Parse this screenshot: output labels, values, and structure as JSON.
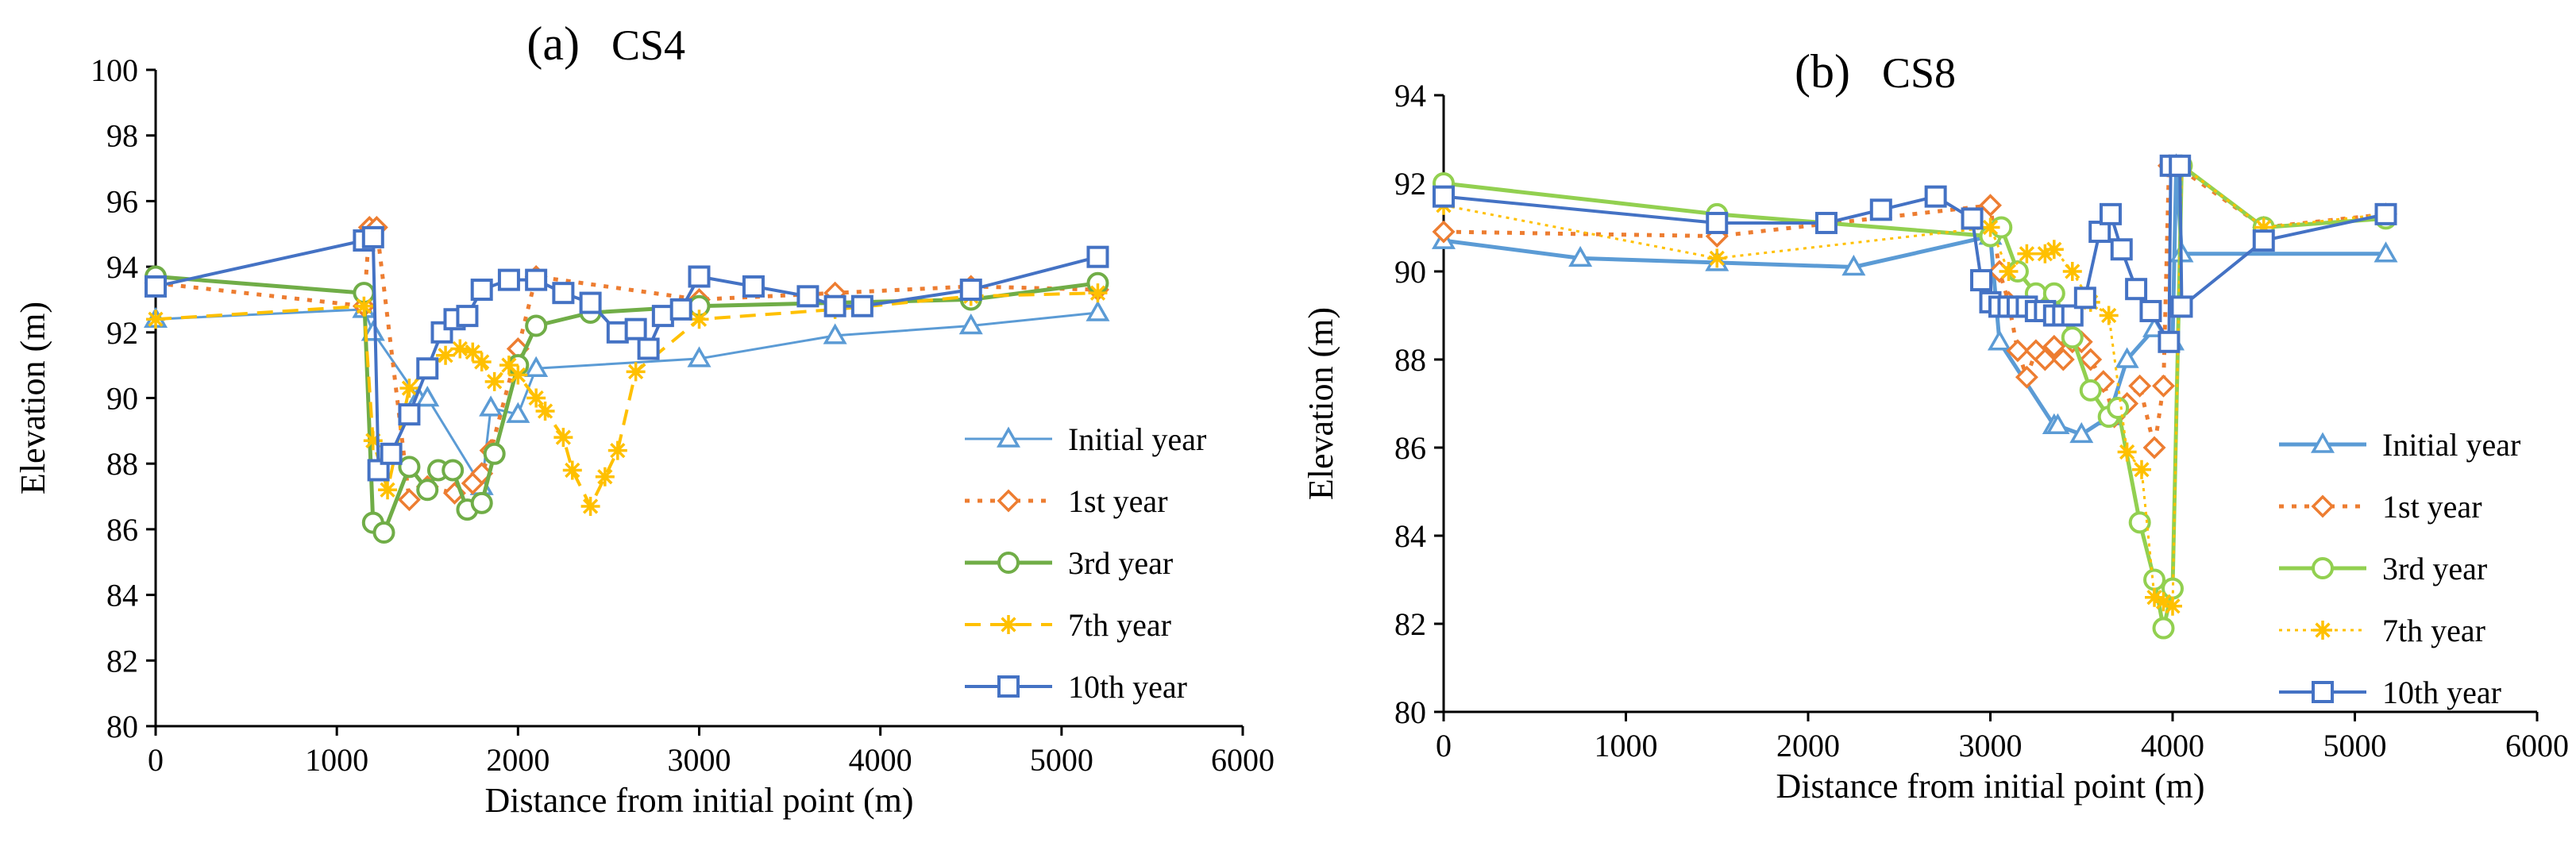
{
  "chart_data": [
    {
      "type": "line",
      "panel_label": "(a)",
      "title": "CS4",
      "xlabel": "Distance from initial point (m)",
      "ylabel": "Elevation (m)",
      "xlim": [
        0,
        6000
      ],
      "ylim": [
        80,
        100
      ],
      "xticks": [
        0,
        1000,
        2000,
        3000,
        4000,
        5000,
        6000
      ],
      "yticks": [
        80,
        82,
        84,
        86,
        88,
        90,
        92,
        94,
        96,
        98,
        100
      ],
      "grid": false,
      "legend": "right",
      "series": [
        {
          "name": "Initial year",
          "color": "#5B9BD5",
          "dash": "",
          "marker": "triangle",
          "width": 3,
          "x": [
            0,
            1150,
            1200,
            1450,
            1500,
            1800,
            1850,
            2000,
            2100,
            3000,
            3750,
            4500,
            5200
          ],
          "y": [
            92.4,
            92.7,
            92.0,
            90.0,
            90.0,
            87.3,
            89.7,
            89.5,
            90.9,
            91.2,
            91.9,
            92.2,
            92.6
          ]
        },
        {
          "name": "1st year",
          "color": "#ED7D31",
          "dash": "6 10",
          "marker": "diamond",
          "width": 5,
          "x": [
            0,
            1150,
            1180,
            1220,
            1400,
            1500,
            1650,
            1750,
            1800,
            1850,
            2000,
            2100,
            3000,
            3750,
            4500,
            5200
          ],
          "y": [
            93.5,
            92.8,
            95.2,
            95.2,
            86.9,
            87.3,
            87.1,
            87.4,
            87.7,
            88.4,
            91.5,
            93.7,
            93.0,
            93.2,
            93.4,
            93.3
          ]
        },
        {
          "name": "3rd year",
          "color": "#70AD47",
          "dash": "",
          "marker": "circle",
          "width": 5,
          "x": [
            0,
            1150,
            1200,
            1260,
            1400,
            1500,
            1560,
            1640,
            1720,
            1800,
            1870,
            2000,
            2100,
            2400,
            3000,
            4500,
            5200
          ],
          "y": [
            93.7,
            93.2,
            86.2,
            85.9,
            87.9,
            87.2,
            87.8,
            87.8,
            86.6,
            86.8,
            88.3,
            91.0,
            92.2,
            92.6,
            92.8,
            93.0,
            93.5
          ]
        },
        {
          "name": "7th year",
          "color": "#FFC000",
          "dash": "20 12",
          "marker": "asterisk",
          "width": 4,
          "x": [
            0,
            1150,
            1200,
            1280,
            1400,
            1500,
            1600,
            1680,
            1750,
            1800,
            1870,
            1950,
            2000,
            2100,
            2150,
            2250,
            2300,
            2400,
            2480,
            2550,
            2650,
            3000,
            3750,
            4500,
            5200
          ],
          "y": [
            92.4,
            92.8,
            88.7,
            87.2,
            90.3,
            90.9,
            91.3,
            91.5,
            91.4,
            91.1,
            90.5,
            91.0,
            90.7,
            90.0,
            89.6,
            88.8,
            87.8,
            86.7,
            87.6,
            88.4,
            90.8,
            92.4,
            92.7,
            93.1,
            93.2
          ]
        },
        {
          "name": "10th year",
          "color": "#4472C4",
          "dash": "",
          "marker": "square",
          "width": 4,
          "x": [
            0,
            1150,
            1200,
            1230,
            1300,
            1400,
            1500,
            1580,
            1650,
            1720,
            1800,
            1950,
            2100,
            2250,
            2400,
            2550,
            2650,
            2720,
            2800,
            2900,
            3000,
            3300,
            3600,
            3750,
            3900,
            4500,
            5200
          ],
          "y": [
            93.4,
            94.8,
            94.9,
            87.8,
            88.3,
            89.5,
            90.9,
            92.0,
            92.4,
            92.5,
            93.3,
            93.6,
            93.6,
            93.2,
            92.9,
            92.0,
            92.1,
            91.5,
            92.5,
            92.7,
            93.7,
            93.4,
            93.1,
            92.8,
            92.8,
            93.3,
            94.3
          ]
        }
      ]
    },
    {
      "type": "line",
      "panel_label": "(b)",
      "title": "CS8",
      "xlabel": "Distance from initial point (m)",
      "ylabel": "Elevation (m)",
      "xlim": [
        0,
        6000
      ],
      "ylim": [
        80,
        94
      ],
      "xticks": [
        0,
        1000,
        2000,
        3000,
        4000,
        5000,
        6000
      ],
      "yticks": [
        80,
        82,
        84,
        86,
        88,
        90,
        92,
        94
      ],
      "grid": false,
      "legend": "right",
      "series": [
        {
          "name": "Initial year",
          "color": "#5B9BD5",
          "dash": "",
          "marker": "triangle",
          "width": 5,
          "x": [
            0,
            750,
            1500,
            2250,
            3000,
            3050,
            3350,
            3370,
            3500,
            3650,
            3750,
            3900,
            4000,
            4020,
            4050,
            5170
          ],
          "y": [
            90.7,
            90.3,
            90.2,
            90.1,
            90.8,
            88.4,
            86.5,
            86.5,
            86.3,
            86.7,
            88.0,
            88.7,
            88.4,
            92.4,
            90.4,
            90.4
          ]
        },
        {
          "name": "1st year",
          "color": "#ED7D31",
          "dash": "6 10",
          "marker": "diamond",
          "width": 5,
          "x": [
            0,
            1500,
            3000,
            3050,
            3100,
            3150,
            3200,
            3250,
            3300,
            3350,
            3400,
            3450,
            3500,
            3550,
            3620,
            3680,
            3750,
            3820,
            3900,
            3950,
            3980,
            4020,
            4500,
            5170
          ],
          "y": [
            90.9,
            90.8,
            91.5,
            90.0,
            89.3,
            88.2,
            87.6,
            88.2,
            88.0,
            88.3,
            88.0,
            88.4,
            88.4,
            88.0,
            87.5,
            86.7,
            87.0,
            87.4,
            86.0,
            87.4,
            92.4,
            92.4,
            91.0,
            91.3
          ]
        },
        {
          "name": "3rd year",
          "color": "#92D050",
          "dash": "",
          "marker": "circle",
          "width": 5,
          "x": [
            0,
            1500,
            3000,
            3060,
            3150,
            3250,
            3350,
            3450,
            3550,
            3650,
            3700,
            3820,
            3900,
            3950,
            4000,
            4050,
            4500,
            5170
          ],
          "y": [
            92.0,
            91.3,
            90.8,
            91.0,
            90.0,
            89.5,
            89.5,
            88.5,
            87.3,
            86.7,
            86.9,
            84.3,
            83.0,
            81.9,
            82.8,
            92.4,
            91.0,
            91.2
          ]
        },
        {
          "name": "7th year",
          "color": "#FFC000",
          "dash": "4 6",
          "marker": "asterisk",
          "width": 3,
          "x": [
            0,
            1500,
            3000,
            3100,
            3200,
            3300,
            3350,
            3450,
            3550,
            3650,
            3750,
            3830,
            3900,
            3950,
            4000,
            4050,
            4500,
            5170
          ],
          "y": [
            91.5,
            90.3,
            91.0,
            90.0,
            90.4,
            90.4,
            90.5,
            90.0,
            89.3,
            89.0,
            85.9,
            85.5,
            82.6,
            82.5,
            82.4,
            92.4,
            91.0,
            91.3
          ]
        },
        {
          "name": "10th year",
          "color": "#4472C4",
          "dash": "",
          "marker": "square",
          "width": 4,
          "x": [
            0,
            1500,
            2100,
            2400,
            2700,
            2900,
            2950,
            3000,
            3050,
            3100,
            3150,
            3200,
            3250,
            3300,
            3350,
            3400,
            3450,
            3520,
            3600,
            3660,
            3720,
            3800,
            3880,
            3980,
            3990,
            4040,
            4050,
            4500,
            5170
          ],
          "y": [
            91.7,
            91.1,
            91.1,
            91.4,
            91.7,
            91.2,
            89.8,
            89.3,
            89.2,
            89.2,
            89.2,
            89.2,
            89.1,
            89.1,
            89.0,
            89.0,
            89.0,
            89.4,
            90.9,
            91.3,
            90.5,
            89.6,
            89.1,
            88.4,
            92.4,
            92.4,
            89.2,
            90.7,
            91.3
          ]
        }
      ]
    }
  ]
}
